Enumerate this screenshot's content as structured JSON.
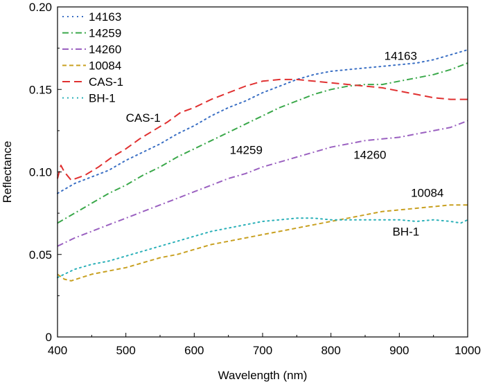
{
  "chart_data": {
    "type": "line",
    "title": "",
    "xlabel": "Wavelength (nm)",
    "ylabel": "Reflectance",
    "xlim": [
      400,
      1000
    ],
    "ylim": [
      0,
      0.2
    ],
    "xticks": [
      400,
      500,
      600,
      700,
      800,
      900,
      1000
    ],
    "xtick_labels": [
      "400",
      "500",
      "600",
      "700",
      "800",
      "900",
      "1000"
    ],
    "yticks": [
      0,
      0.05,
      0.1,
      0.15,
      0.2
    ],
    "ytick_labels": [
      "0",
      "0.05",
      "0.10",
      "0.15",
      "0.20"
    ],
    "grid": false,
    "legend_position": "top-left",
    "series": [
      {
        "name": "14163",
        "color": "#3a6fc4",
        "dash": "dotted",
        "x": [
          400,
          425,
          450,
          475,
          500,
          525,
          550,
          575,
          600,
          625,
          650,
          675,
          700,
          725,
          750,
          775,
          800,
          825,
          850,
          875,
          900,
          925,
          950,
          975,
          1000
        ],
        "values": [
          0.087,
          0.093,
          0.097,
          0.101,
          0.107,
          0.112,
          0.117,
          0.123,
          0.128,
          0.134,
          0.139,
          0.143,
          0.148,
          0.152,
          0.156,
          0.159,
          0.161,
          0.162,
          0.163,
          0.164,
          0.165,
          0.166,
          0.168,
          0.171,
          0.174
        ]
      },
      {
        "name": "14259",
        "color": "#3aa84a",
        "dash": "dashdot",
        "x": [
          400,
          425,
          450,
          475,
          500,
          525,
          550,
          575,
          600,
          625,
          650,
          675,
          700,
          725,
          750,
          775,
          800,
          825,
          850,
          875,
          900,
          925,
          950,
          975,
          1000
        ],
        "values": [
          0.069,
          0.075,
          0.081,
          0.087,
          0.092,
          0.098,
          0.103,
          0.109,
          0.114,
          0.119,
          0.124,
          0.129,
          0.134,
          0.139,
          0.143,
          0.147,
          0.15,
          0.152,
          0.153,
          0.153,
          0.155,
          0.157,
          0.159,
          0.162,
          0.166
        ]
      },
      {
        "name": "14260",
        "color": "#9a60c0",
        "dash": "dashdot",
        "x": [
          400,
          425,
          450,
          475,
          500,
          525,
          550,
          575,
          600,
          625,
          650,
          675,
          700,
          725,
          750,
          775,
          800,
          825,
          850,
          875,
          900,
          925,
          950,
          975,
          1000
        ],
        "values": [
          0.055,
          0.06,
          0.064,
          0.068,
          0.072,
          0.076,
          0.08,
          0.084,
          0.088,
          0.092,
          0.096,
          0.099,
          0.103,
          0.106,
          0.109,
          0.112,
          0.115,
          0.117,
          0.119,
          0.12,
          0.121,
          0.123,
          0.125,
          0.127,
          0.131
        ]
      },
      {
        "name": "10084",
        "color": "#c8a020",
        "dash": "dashed",
        "x": [
          400,
          410,
          420,
          450,
          475,
          500,
          525,
          550,
          575,
          600,
          625,
          650,
          675,
          700,
          725,
          750,
          775,
          800,
          825,
          850,
          875,
          900,
          925,
          950,
          975,
          1000
        ],
        "values": [
          0.038,
          0.035,
          0.034,
          0.038,
          0.04,
          0.042,
          0.045,
          0.048,
          0.05,
          0.053,
          0.056,
          0.058,
          0.06,
          0.062,
          0.064,
          0.066,
          0.068,
          0.07,
          0.072,
          0.074,
          0.076,
          0.077,
          0.078,
          0.079,
          0.08,
          0.08
        ]
      },
      {
        "name": "CAS-1",
        "color": "#e03030",
        "dash": "longdash",
        "x": [
          400,
          405,
          410,
          420,
          440,
          460,
          480,
          500,
          520,
          540,
          560,
          580,
          600,
          625,
          650,
          675,
          700,
          725,
          750,
          775,
          800,
          825,
          850,
          875,
          900,
          925,
          950,
          975,
          1000
        ],
        "values": [
          0.096,
          0.104,
          0.1,
          0.095,
          0.098,
          0.103,
          0.109,
          0.114,
          0.12,
          0.125,
          0.13,
          0.136,
          0.139,
          0.144,
          0.148,
          0.152,
          0.155,
          0.156,
          0.156,
          0.155,
          0.154,
          0.153,
          0.152,
          0.151,
          0.149,
          0.147,
          0.145,
          0.144,
          0.144
        ]
      },
      {
        "name": "BH-1",
        "color": "#2ab0b8",
        "dash": "dotted",
        "x": [
          400,
          425,
          450,
          475,
          500,
          525,
          550,
          575,
          600,
          625,
          650,
          675,
          700,
          725,
          750,
          775,
          800,
          825,
          850,
          875,
          900,
          925,
          950,
          975,
          990,
          1000
        ],
        "values": [
          0.036,
          0.041,
          0.044,
          0.046,
          0.049,
          0.052,
          0.055,
          0.058,
          0.061,
          0.064,
          0.066,
          0.068,
          0.07,
          0.071,
          0.072,
          0.072,
          0.071,
          0.071,
          0.071,
          0.071,
          0.071,
          0.07,
          0.071,
          0.07,
          0.069,
          0.071
        ]
      }
    ],
    "annotations": [
      {
        "text": "14163",
        "x": 878,
        "y": 0.168
      },
      {
        "text": "CAS-1",
        "x": 500,
        "y": 0.1305
      },
      {
        "text": "14259",
        "x": 652,
        "y": 0.111
      },
      {
        "text": "14260",
        "x": 833,
        "y": 0.108
      },
      {
        "text": "10084",
        "x": 917,
        "y": 0.085
      },
      {
        "text": "BH-1",
        "x": 890,
        "y": 0.0615
      }
    ]
  }
}
